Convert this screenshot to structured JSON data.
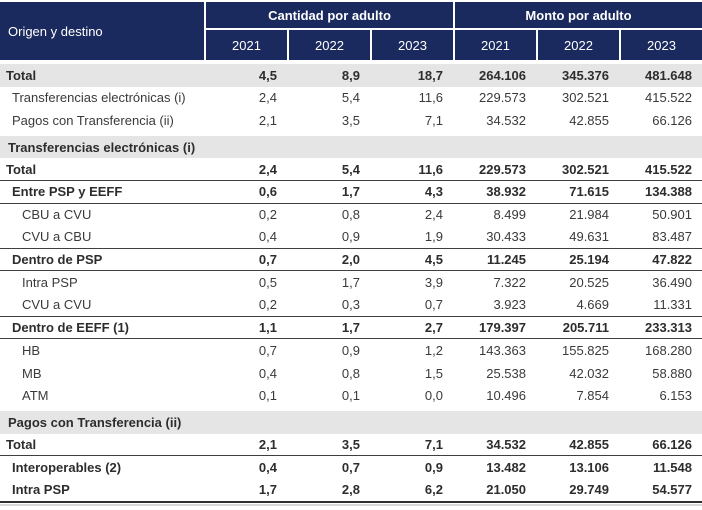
{
  "colors": {
    "header_navy": "#1a2a5e",
    "section_band_gray": "#e5e5e5",
    "text": "#3a3a3a",
    "rule_dark": "#3f3f3f"
  },
  "table": {
    "header": {
      "origin_label": "Origen y destino",
      "group1": "Cantidad por adulto",
      "group2": "Monto por adulto",
      "years": [
        "2021",
        "2022",
        "2023"
      ]
    },
    "rows": [
      {
        "type": "grand",
        "label": "Total",
        "values": [
          "4,5",
          "8,9",
          "18,7",
          "264.106",
          "345.376",
          "481.648"
        ]
      },
      {
        "type": "plain",
        "label": "Transferencias electrónicas (i)",
        "values": [
          "2,4",
          "5,4",
          "11,6",
          "229.573",
          "302.521",
          "415.522"
        ]
      },
      {
        "type": "plain",
        "label": "Pagos con Transferencia (ii)",
        "values": [
          "2,1",
          "3,5",
          "7,1",
          "34.532",
          "42.855",
          "66.126"
        ]
      },
      {
        "type": "section",
        "label": "Transferencias electrónicas (i)",
        "values": [
          "",
          "",
          "",
          "",
          "",
          ""
        ]
      },
      {
        "type": "total",
        "label": "Total",
        "values": [
          "2,4",
          "5,4",
          "11,6",
          "229.573",
          "302.521",
          "415.522"
        ]
      },
      {
        "type": "subtotal",
        "label": "Entre PSP y EEFF",
        "values": [
          "0,6",
          "1,7",
          "4,3",
          "38.932",
          "71.615",
          "134.388"
        ]
      },
      {
        "type": "child",
        "label": "CBU a CVU",
        "values": [
          "0,2",
          "0,8",
          "2,4",
          "8.499",
          "21.984",
          "50.901"
        ]
      },
      {
        "type": "child-end",
        "label": "CVU a CBU",
        "values": [
          "0,4",
          "0,9",
          "1,9",
          "30.433",
          "49.631",
          "83.487"
        ]
      },
      {
        "type": "subtotal",
        "label": "Dentro de PSP",
        "values": [
          "0,7",
          "2,0",
          "4,5",
          "11.245",
          "25.194",
          "47.822"
        ]
      },
      {
        "type": "child",
        "label": "Intra PSP",
        "values": [
          "0,5",
          "1,7",
          "3,9",
          "7.322",
          "20.525",
          "36.490"
        ]
      },
      {
        "type": "child-end",
        "label": "CVU a CVU",
        "values": [
          "0,2",
          "0,3",
          "0,7",
          "3.923",
          "4.669",
          "11.331"
        ]
      },
      {
        "type": "subtotal",
        "label": "Dentro de EEFF (1)",
        "values": [
          "1,1",
          "1,7",
          "2,7",
          "179.397",
          "205.711",
          "233.313"
        ]
      },
      {
        "type": "child",
        "label": "HB",
        "values": [
          "0,7",
          "0,9",
          "1,2",
          "143.363",
          "155.825",
          "168.280"
        ]
      },
      {
        "type": "child",
        "label": "MB",
        "values": [
          "0,4",
          "0,8",
          "1,5",
          "25.538",
          "42.032",
          "58.880"
        ]
      },
      {
        "type": "child",
        "label": "ATM",
        "values": [
          "0,1",
          "0,1",
          "0,0",
          "10.496",
          "7.854",
          "6.153"
        ]
      },
      {
        "type": "section",
        "label": "Pagos con Transferencia (ii)",
        "values": [
          "",
          "",
          "",
          "",
          "",
          ""
        ]
      },
      {
        "type": "total",
        "label": "Total",
        "values": [
          "2,1",
          "3,5",
          "7,1",
          "34.532",
          "42.855",
          "66.126"
        ]
      },
      {
        "type": "bold-child",
        "label": "Interoperables (2)",
        "values": [
          "0,4",
          "0,7",
          "0,9",
          "13.482",
          "13.106",
          "11.548"
        ]
      },
      {
        "type": "bold-child",
        "label": "Intra PSP",
        "values": [
          "1,7",
          "2,8",
          "6,2",
          "21.050",
          "29.749",
          "54.577"
        ]
      }
    ]
  }
}
